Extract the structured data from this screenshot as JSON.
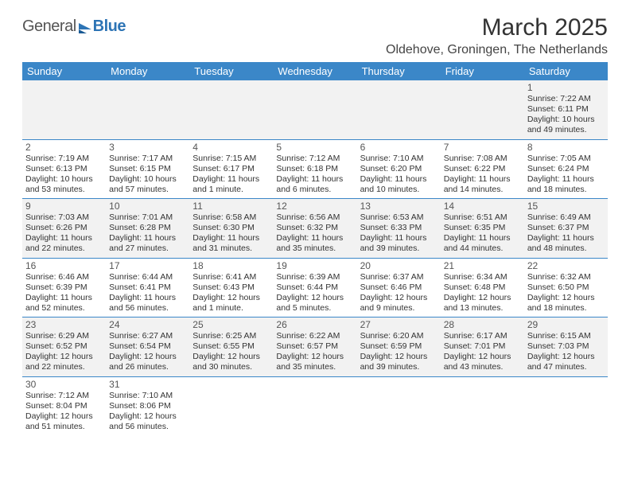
{
  "logo": {
    "word1": "General",
    "word2": "Blue"
  },
  "title": "March 2025",
  "location": "Oldehove, Groningen, The Netherlands",
  "colors": {
    "header_bg": "#3b87c8",
    "header_text": "#ffffff",
    "row_alt_bg": "#f2f2f2",
    "border": "#3b87c8",
    "text": "#333333"
  },
  "day_headers": [
    "Sunday",
    "Monday",
    "Tuesday",
    "Wednesday",
    "Thursday",
    "Friday",
    "Saturday"
  ],
  "weeks": [
    [
      null,
      null,
      null,
      null,
      null,
      null,
      {
        "n": "1",
        "sr": "Sunrise: 7:22 AM",
        "ss": "Sunset: 6:11 PM",
        "dl": "Daylight: 10 hours and 49 minutes."
      }
    ],
    [
      {
        "n": "2",
        "sr": "Sunrise: 7:19 AM",
        "ss": "Sunset: 6:13 PM",
        "dl": "Daylight: 10 hours and 53 minutes."
      },
      {
        "n": "3",
        "sr": "Sunrise: 7:17 AM",
        "ss": "Sunset: 6:15 PM",
        "dl": "Daylight: 10 hours and 57 minutes."
      },
      {
        "n": "4",
        "sr": "Sunrise: 7:15 AM",
        "ss": "Sunset: 6:17 PM",
        "dl": "Daylight: 11 hours and 1 minute."
      },
      {
        "n": "5",
        "sr": "Sunrise: 7:12 AM",
        "ss": "Sunset: 6:18 PM",
        "dl": "Daylight: 11 hours and 6 minutes."
      },
      {
        "n": "6",
        "sr": "Sunrise: 7:10 AM",
        "ss": "Sunset: 6:20 PM",
        "dl": "Daylight: 11 hours and 10 minutes."
      },
      {
        "n": "7",
        "sr": "Sunrise: 7:08 AM",
        "ss": "Sunset: 6:22 PM",
        "dl": "Daylight: 11 hours and 14 minutes."
      },
      {
        "n": "8",
        "sr": "Sunrise: 7:05 AM",
        "ss": "Sunset: 6:24 PM",
        "dl": "Daylight: 11 hours and 18 minutes."
      }
    ],
    [
      {
        "n": "9",
        "sr": "Sunrise: 7:03 AM",
        "ss": "Sunset: 6:26 PM",
        "dl": "Daylight: 11 hours and 22 minutes."
      },
      {
        "n": "10",
        "sr": "Sunrise: 7:01 AM",
        "ss": "Sunset: 6:28 PM",
        "dl": "Daylight: 11 hours and 27 minutes."
      },
      {
        "n": "11",
        "sr": "Sunrise: 6:58 AM",
        "ss": "Sunset: 6:30 PM",
        "dl": "Daylight: 11 hours and 31 minutes."
      },
      {
        "n": "12",
        "sr": "Sunrise: 6:56 AM",
        "ss": "Sunset: 6:32 PM",
        "dl": "Daylight: 11 hours and 35 minutes."
      },
      {
        "n": "13",
        "sr": "Sunrise: 6:53 AM",
        "ss": "Sunset: 6:33 PM",
        "dl": "Daylight: 11 hours and 39 minutes."
      },
      {
        "n": "14",
        "sr": "Sunrise: 6:51 AM",
        "ss": "Sunset: 6:35 PM",
        "dl": "Daylight: 11 hours and 44 minutes."
      },
      {
        "n": "15",
        "sr": "Sunrise: 6:49 AM",
        "ss": "Sunset: 6:37 PM",
        "dl": "Daylight: 11 hours and 48 minutes."
      }
    ],
    [
      {
        "n": "16",
        "sr": "Sunrise: 6:46 AM",
        "ss": "Sunset: 6:39 PM",
        "dl": "Daylight: 11 hours and 52 minutes."
      },
      {
        "n": "17",
        "sr": "Sunrise: 6:44 AM",
        "ss": "Sunset: 6:41 PM",
        "dl": "Daylight: 11 hours and 56 minutes."
      },
      {
        "n": "18",
        "sr": "Sunrise: 6:41 AM",
        "ss": "Sunset: 6:43 PM",
        "dl": "Daylight: 12 hours and 1 minute."
      },
      {
        "n": "19",
        "sr": "Sunrise: 6:39 AM",
        "ss": "Sunset: 6:44 PM",
        "dl": "Daylight: 12 hours and 5 minutes."
      },
      {
        "n": "20",
        "sr": "Sunrise: 6:37 AM",
        "ss": "Sunset: 6:46 PM",
        "dl": "Daylight: 12 hours and 9 minutes."
      },
      {
        "n": "21",
        "sr": "Sunrise: 6:34 AM",
        "ss": "Sunset: 6:48 PM",
        "dl": "Daylight: 12 hours and 13 minutes."
      },
      {
        "n": "22",
        "sr": "Sunrise: 6:32 AM",
        "ss": "Sunset: 6:50 PM",
        "dl": "Daylight: 12 hours and 18 minutes."
      }
    ],
    [
      {
        "n": "23",
        "sr": "Sunrise: 6:29 AM",
        "ss": "Sunset: 6:52 PM",
        "dl": "Daylight: 12 hours and 22 minutes."
      },
      {
        "n": "24",
        "sr": "Sunrise: 6:27 AM",
        "ss": "Sunset: 6:54 PM",
        "dl": "Daylight: 12 hours and 26 minutes."
      },
      {
        "n": "25",
        "sr": "Sunrise: 6:25 AM",
        "ss": "Sunset: 6:55 PM",
        "dl": "Daylight: 12 hours and 30 minutes."
      },
      {
        "n": "26",
        "sr": "Sunrise: 6:22 AM",
        "ss": "Sunset: 6:57 PM",
        "dl": "Daylight: 12 hours and 35 minutes."
      },
      {
        "n": "27",
        "sr": "Sunrise: 6:20 AM",
        "ss": "Sunset: 6:59 PM",
        "dl": "Daylight: 12 hours and 39 minutes."
      },
      {
        "n": "28",
        "sr": "Sunrise: 6:17 AM",
        "ss": "Sunset: 7:01 PM",
        "dl": "Daylight: 12 hours and 43 minutes."
      },
      {
        "n": "29",
        "sr": "Sunrise: 6:15 AM",
        "ss": "Sunset: 7:03 PM",
        "dl": "Daylight: 12 hours and 47 minutes."
      }
    ],
    [
      {
        "n": "30",
        "sr": "Sunrise: 7:12 AM",
        "ss": "Sunset: 8:04 PM",
        "dl": "Daylight: 12 hours and 51 minutes."
      },
      {
        "n": "31",
        "sr": "Sunrise: 7:10 AM",
        "ss": "Sunset: 8:06 PM",
        "dl": "Daylight: 12 hours and 56 minutes."
      },
      null,
      null,
      null,
      null,
      null
    ]
  ]
}
